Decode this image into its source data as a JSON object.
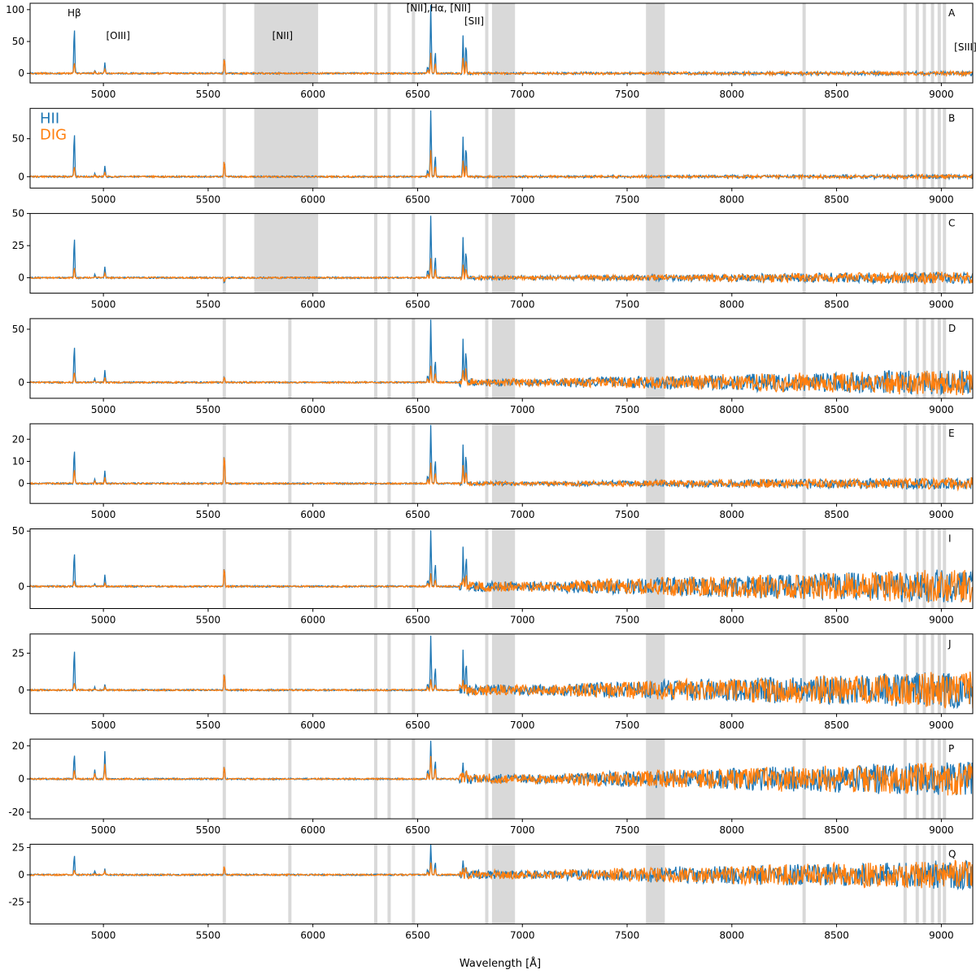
{
  "figure": {
    "xlabel": "Wavelength [Å]"
  },
  "colors": {
    "hii": "#1f77b4",
    "dig": "#ff7f0e",
    "mask": "#d9d9d9",
    "axis": "#000000"
  },
  "legend": {
    "placement": "upper-left of panel B",
    "entries": [
      {
        "label": "HII",
        "color": "#1f77b4"
      },
      {
        "label": "DIG",
        "color": "#ff7f0e"
      }
    ]
  },
  "line_labels": [
    {
      "text": "Hβ",
      "x": 4861
    },
    {
      "text": "[OIII]",
      "x": 5070
    },
    {
      "text": "[NII]",
      "x": 5855
    },
    {
      "text": "[NII],Hα, [NII]",
      "x": 6600
    },
    {
      "text": "[SII]",
      "x": 6770
    },
    {
      "text": "[SIII]",
      "x": 9115
    }
  ],
  "chart_data": {
    "type": "line",
    "xlim": [
      4650,
      9150
    ],
    "xticks": [
      5000,
      5500,
      6000,
      6500,
      7000,
      7500,
      8000,
      8500,
      9000
    ],
    "series_names": [
      "HII",
      "DIG"
    ],
    "masked_bands": [
      [
        5720,
        6025
      ],
      [
        6855,
        6965
      ],
      [
        7590,
        7680
      ]
    ],
    "thin_masked_lines": [
      5577,
      5890,
      6300,
      6364,
      6480,
      6830,
      8345,
      8827,
      8885,
      8919,
      8958,
      8990,
      9015
    ],
    "emission_lines": [
      {
        "name": "Hb",
        "x": 4861
      },
      {
        "name": "[OIII]4959",
        "x": 4959
      },
      {
        "name": "[OIII]5007",
        "x": 5007
      },
      {
        "name": "[NII]6548",
        "x": 6548
      },
      {
        "name": "Ha",
        "x": 6563
      },
      {
        "name": "[NII]6584",
        "x": 6584
      },
      {
        "name": "[SII]6717",
        "x": 6717
      },
      {
        "name": "[SII]6731",
        "x": 6731
      }
    ],
    "panels": [
      {
        "label": "A",
        "ylim": [
          -15,
          110
        ],
        "yticks": [
          0,
          50,
          100
        ],
        "mask_nii_band": true,
        "noise": 0.03,
        "peaks_hii": [
          75,
          5,
          18,
          10,
          110,
          35,
          60,
          50
        ],
        "peaks_dig": [
          18,
          2,
          8,
          5,
          32,
          16,
          25,
          22
        ],
        "sky": 25
      },
      {
        "label": "B",
        "ylim": [
          -15,
          90
        ],
        "yticks": [
          0,
          50
        ],
        "mask_nii_band": true,
        "noise": 0.03,
        "peaks_hii": [
          62,
          4,
          15,
          9,
          90,
          30,
          52,
          42
        ],
        "peaks_dig": [
          15,
          2,
          7,
          4,
          36,
          14,
          22,
          18
        ],
        "sky": 22
      },
      {
        "label": "C",
        "ylim": [
          -12,
          50
        ],
        "yticks": [
          0,
          25,
          50
        ],
        "mask_nii_band": true,
        "noise": 0.1,
        "peaks_hii": [
          33,
          3,
          9,
          6,
          50,
          17,
          33,
          22
        ],
        "peaks_dig": [
          8,
          1,
          4,
          3,
          15,
          7,
          10,
          8
        ],
        "sky": -4
      },
      {
        "label": "D",
        "ylim": [
          -15,
          60
        ],
        "yticks": [
          0,
          50
        ],
        "mask_nii_band": false,
        "noise": 0.22,
        "peaks_hii": [
          37,
          3,
          12,
          7,
          60,
          22,
          40,
          30
        ],
        "peaks_dig": [
          10,
          2,
          5,
          4,
          16,
          9,
          14,
          12
        ],
        "sky": 6
      },
      {
        "label": "E",
        "ylim": [
          -9,
          27
        ],
        "yticks": [
          0,
          10,
          20
        ],
        "mask_nii_band": false,
        "noise": 0.1,
        "peaks_hii": [
          16,
          2,
          6,
          4,
          27,
          11,
          18,
          14
        ],
        "peaks_dig": [
          7,
          1,
          3,
          2,
          10,
          5,
          8,
          6
        ],
        "sky": 14
      },
      {
        "label": "I",
        "ylim": [
          -20,
          52
        ],
        "yticks": [
          0,
          50
        ],
        "mask_nii_band": false,
        "noise": 0.3,
        "peaks_hii": [
          33,
          3,
          11,
          6,
          52,
          22,
          33,
          28
        ],
        "peaks_dig": [
          6,
          1,
          3,
          3,
          12,
          6,
          9,
          8
        ],
        "sky": 18
      },
      {
        "label": "J",
        "ylim": [
          -16,
          38
        ],
        "yticks": [
          0,
          25
        ],
        "mask_nii_band": false,
        "noise": 0.32,
        "peaks_hii": [
          29,
          2,
          4,
          5,
          38,
          16,
          28,
          20
        ],
        "peaks_dig": [
          5,
          1,
          2,
          2,
          8,
          4,
          7,
          6
        ],
        "sky": 12
      },
      {
        "label": "P",
        "ylim": [
          -24,
          24
        ],
        "yticks": [
          -20,
          0,
          20
        ],
        "mask_nii_band": false,
        "noise": 0.3,
        "peaks_hii": [
          16,
          6,
          17,
          6,
          24,
          12,
          8,
          6
        ],
        "peaks_dig": [
          6,
          3,
          9,
          4,
          14,
          7,
          4,
          4
        ],
        "sky": 8
      },
      {
        "label": "Q",
        "ylim": [
          -45,
          28
        ],
        "yticks": [
          -25,
          0,
          25
        ],
        "mask_nii_band": false,
        "noise": 0.25,
        "peaks_hii": [
          19,
          3,
          6,
          5,
          28,
          12,
          14,
          9
        ],
        "peaks_dig": [
          5,
          1,
          3,
          2,
          12,
          6,
          6,
          4
        ],
        "sky": 8
      }
    ]
  }
}
